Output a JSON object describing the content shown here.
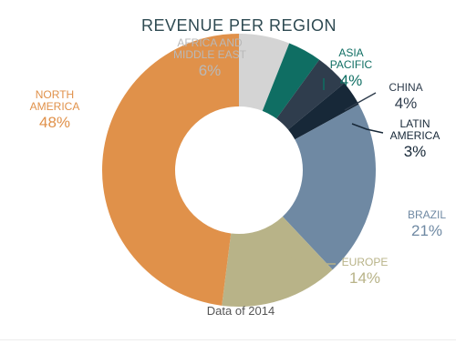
{
  "chart_data": {
    "type": "pie",
    "title": "REVENUE PER REGION",
    "footnote": "Data of 2014",
    "slices": [
      {
        "label_lines": [
          "AFRICA AND",
          "MIDDLE EAST"
        ],
        "value": 6,
        "value_label": "6%",
        "color": "#d4d4d4",
        "label_color": "#b9b9b9"
      },
      {
        "label_lines": [
          "ASIA",
          "PACIFIC"
        ],
        "value": 4,
        "value_label": "4%",
        "color": "#0f6e63",
        "label_color": "#0f6e63"
      },
      {
        "label_lines": [
          "CHINA"
        ],
        "value": 4,
        "value_label": "4%",
        "color": "#2f3d4d",
        "label_color": "#2f3d4d"
      },
      {
        "label_lines": [
          "LATIN",
          "AMERICA"
        ],
        "value": 3,
        "value_label": "3%",
        "color": "#172838",
        "label_color": "#172838"
      },
      {
        "label_lines": [
          "BRAZIL"
        ],
        "value": 21,
        "value_label": "21%",
        "color": "#6f89a3",
        "label_color": "#6f89a3"
      },
      {
        "label_lines": [
          "EUROPE"
        ],
        "value": 14,
        "value_label": "14%",
        "color": "#b8b388",
        "label_color": "#b8b388"
      },
      {
        "label_lines": [
          "NORTH",
          "AMERICA"
        ],
        "value": 48,
        "value_label": "48%",
        "color": "#e0914a",
        "label_color": "#e0914a"
      }
    ]
  }
}
